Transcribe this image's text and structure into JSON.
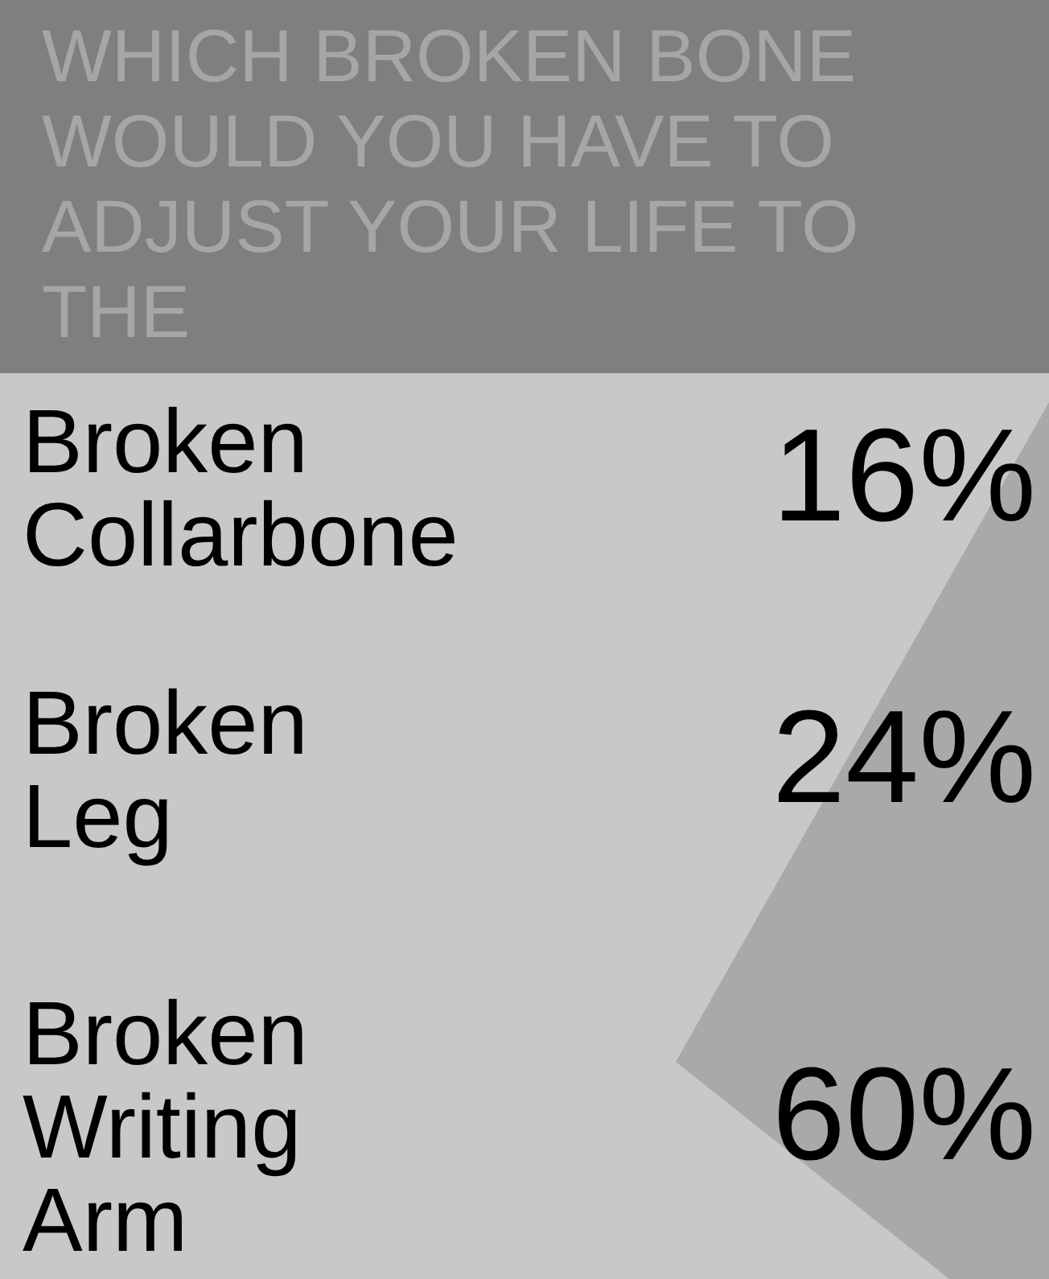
{
  "chart_data": {
    "type": "other",
    "title": "WHICH BROKEN BONE WOULD YOU HAVE TO ADJUST YOUR LIFE TO THE",
    "categories": [
      "Broken Collarbone",
      "Broken Leg",
      "Broken Writing Arm"
    ],
    "values": [
      16,
      24,
      60
    ],
    "value_labels": [
      "16%",
      "24%",
      "60%"
    ]
  }
}
